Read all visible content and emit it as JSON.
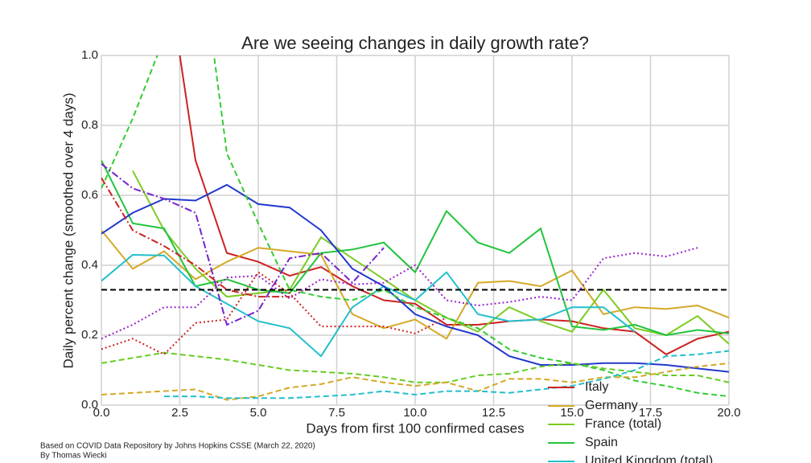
{
  "chart_data": {
    "type": "line",
    "title": "Are we seeing changes in daily growth rate?",
    "x_label": "Days from first 100 confirmed cases",
    "y_label": "Daily percent change (smoothed over 4 days)",
    "footnotes": [
      "Based on COVID Data Repository by Johns Hopkins CSSE (March 22, 2020)",
      "By Thomas Wiecki"
    ],
    "x": [
      0,
      1,
      2,
      3,
      4,
      5,
      6,
      7,
      8,
      9,
      10,
      11,
      12,
      13,
      14,
      15,
      16,
      17,
      18,
      19,
      20
    ],
    "xlim": [
      0,
      20
    ],
    "ylim": [
      0,
      1
    ],
    "xticks": [
      {
        "value": 0,
        "label": "0.0"
      },
      {
        "value": 2.5,
        "label": "2.5"
      },
      {
        "value": 5,
        "label": "5.0"
      },
      {
        "value": 7.5,
        "label": "7.5"
      },
      {
        "value": 10,
        "label": "10.0"
      },
      {
        "value": 12.5,
        "label": "12.5"
      },
      {
        "value": 15,
        "label": "15.0"
      },
      {
        "value": 17.5,
        "label": "17.5"
      },
      {
        "value": 20,
        "label": "20.0"
      }
    ],
    "yticks": [
      {
        "value": 0,
        "label": "0.0"
      },
      {
        "value": 0.2,
        "label": "0.2"
      },
      {
        "value": 0.4,
        "label": "0.4"
      },
      {
        "value": 0.6,
        "label": "0.6"
      },
      {
        "value": 0.8,
        "label": "0.8"
      },
      {
        "value": 1,
        "label": "1.0"
      }
    ],
    "grid": true,
    "reference_line": 0.33,
    "series": [
      {
        "name": "Italy",
        "color": "#cc2222",
        "dash": "solid",
        "values": [
          null,
          null,
          1.3,
          0.7,
          0.435,
          0.41,
          0.37,
          0.395,
          0.34,
          0.3,
          0.29,
          0.23,
          0.23,
          0.24,
          0.245,
          0.24,
          0.22,
          0.21,
          0.145,
          0.19,
          0.21
        ]
      },
      {
        "name": "Germany",
        "color": "#d4a826",
        "dash": "solid",
        "values": [
          0.5,
          0.39,
          0.44,
          0.36,
          0.41,
          0.45,
          0.44,
          0.43,
          0.26,
          0.22,
          0.245,
          0.19,
          0.35,
          0.355,
          0.34,
          0.385,
          0.26,
          0.28,
          0.275,
          0.285,
          0.25
        ]
      },
      {
        "name": "France (total)",
        "color": "#7ccc22",
        "dash": "solid",
        "values": [
          null,
          0.67,
          0.5,
          0.39,
          0.31,
          0.32,
          0.33,
          0.48,
          0.42,
          0.36,
          0.3,
          0.25,
          0.21,
          0.28,
          0.24,
          0.21,
          0.33,
          0.22,
          0.2,
          0.255,
          0.175
        ]
      },
      {
        "name": "Spain",
        "color": "#22c43c",
        "dash": "solid",
        "values": [
          0.7,
          0.52,
          0.505,
          0.34,
          0.36,
          0.33,
          0.32,
          0.435,
          0.445,
          0.465,
          0.38,
          0.555,
          0.465,
          0.435,
          0.505,
          0.225,
          0.215,
          0.23,
          0.2,
          0.215,
          0.205
        ]
      },
      {
        "name": "United Kingdom (total)",
        "color": "#22bfcc",
        "dash": "solid",
        "values": [
          0.355,
          0.43,
          0.428,
          0.34,
          0.29,
          0.24,
          0.22,
          0.14,
          0.28,
          0.34,
          0.3,
          0.38,
          0.26,
          0.24,
          0.245,
          0.28,
          0.28,
          0.21,
          null,
          null,
          null
        ]
      },
      {
        "color": "#2238cc",
        "dash": "solid",
        "values": [
          0.49,
          0.55,
          0.59,
          0.585,
          0.63,
          0.575,
          0.565,
          0.5,
          0.39,
          0.34,
          0.26,
          0.225,
          0.2,
          0.14,
          0.115,
          0.115,
          0.12,
          0.12,
          0.115,
          0.105,
          0.095
        ]
      },
      {
        "color": "#33cc33",
        "dash": "dashed",
        "values": [
          0.62,
          0.82,
          1.05,
          1.4,
          0.72,
          0.52,
          0.33,
          0.31,
          0.3,
          0.33,
          0.28,
          0.25,
          0.22,
          0.16,
          0.135,
          0.12,
          0.1,
          0.07,
          0.055,
          0.035,
          0.025
        ]
      },
      {
        "color": "#7722cc",
        "dash": "dashdot",
        "values": [
          0.69,
          0.62,
          0.59,
          0.55,
          0.23,
          0.27,
          0.42,
          0.435,
          0.35,
          0.45,
          null,
          null,
          null,
          null,
          null,
          null,
          null,
          null,
          null,
          null,
          null
        ]
      },
      {
        "color": "#66cc22",
        "dash": "dashed",
        "values": [
          0.12,
          0.135,
          0.15,
          0.14,
          0.13,
          0.115,
          0.1,
          0.095,
          0.09,
          0.08,
          0.065,
          0.065,
          0.085,
          0.09,
          0.11,
          0.12,
          0.105,
          0.095,
          0.085,
          0.085,
          0.065
        ]
      },
      {
        "color": "#d4a826",
        "dash": "dashed",
        "values": [
          0.03,
          0.035,
          0.04,
          0.045,
          0.015,
          0.025,
          0.05,
          0.06,
          0.08,
          0.065,
          0.055,
          0.065,
          0.04,
          0.075,
          0.075,
          0.065,
          0.08,
          0.08,
          0.095,
          0.11,
          0.12
        ]
      },
      {
        "color": "#22bfcc",
        "dash": "dashed",
        "values": [
          null,
          null,
          0.025,
          0.025,
          0.02,
          0.02,
          0.02,
          0.025,
          0.03,
          0.04,
          0.03,
          0.04,
          0.04,
          0.035,
          0.045,
          0.055,
          0.075,
          0.1,
          0.14,
          0.145,
          0.155
        ]
      },
      {
        "color": "#9922cc",
        "dash": "dotted",
        "values": [
          0.19,
          0.23,
          0.28,
          0.28,
          0.365,
          0.37,
          0.305,
          0.36,
          0.345,
          0.35,
          0.4,
          0.3,
          0.285,
          0.295,
          0.31,
          0.3,
          0.42,
          0.435,
          0.425,
          0.45,
          null
        ]
      },
      {
        "color": "#cc2222",
        "dash": "dotted",
        "values": [
          0.16,
          0.19,
          0.145,
          0.235,
          0.245,
          0.38,
          0.32,
          0.225,
          0.225,
          0.225,
          0.205,
          0.25,
          null,
          null,
          null,
          null,
          null,
          null,
          null,
          null,
          null
        ]
      },
      {
        "color": "#cc2222",
        "dash": "dashdot",
        "values": [
          0.65,
          0.5,
          0.455,
          0.4,
          0.33,
          0.31,
          0.31,
          null,
          null,
          null,
          null,
          null,
          null,
          null,
          null,
          null,
          null,
          null,
          null,
          null,
          null
        ]
      }
    ]
  }
}
